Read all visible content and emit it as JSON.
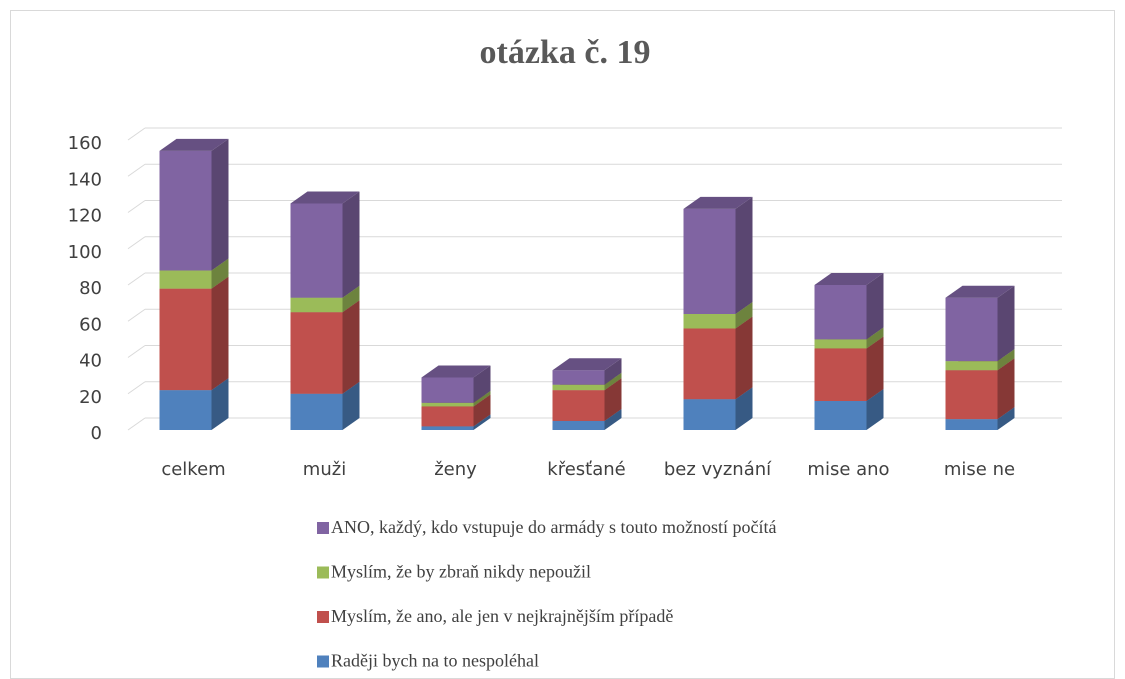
{
  "chart_data": {
    "type": "bar3d_stacked",
    "title": "otázka č. 19",
    "categories": [
      "celkem",
      "muži",
      "ženy",
      "křesťané",
      "bez vyznání",
      "mise ano",
      "mise ne"
    ],
    "series": [
      {
        "name": "Raději bych na to nespoléhal",
        "color": "#4f81bd",
        "values": [
          22,
          20,
          2,
          5,
          17,
          16,
          6
        ]
      },
      {
        "name": "Myslím, že ano, ale jen v nejkrajnějším případě",
        "color": "#c0504d",
        "values": [
          56,
          45,
          11,
          17,
          39,
          29,
          27
        ]
      },
      {
        "name": "Myslím, že by zbraň nikdy nepoužil",
        "color": "#9bbb59",
        "values": [
          10,
          8,
          2,
          3,
          8,
          5,
          5
        ]
      },
      {
        "name": "ANO, každý, kdo vstupuje do armády s touto možností počítá",
        "color": "#8064a2",
        "values": [
          66,
          52,
          14,
          8,
          58,
          30,
          35
        ]
      }
    ],
    "ylim": [
      0,
      160
    ],
    "yticks": [
      0,
      20,
      40,
      60,
      80,
      100,
      120,
      140,
      160
    ],
    "grid": true,
    "legend": "bottom"
  }
}
